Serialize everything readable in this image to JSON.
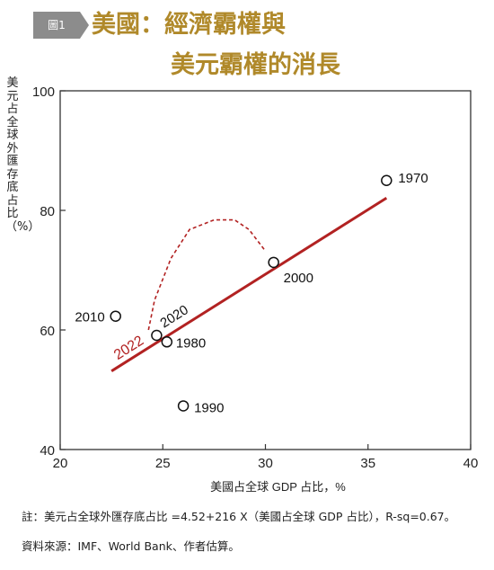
{
  "header": {
    "figure_badge": "圖1",
    "title_line_1": "美國：經濟霸權與",
    "title_line_2": "美元霸權的消長",
    "title_color": "#b0892a"
  },
  "chart_data": {
    "type": "scatter",
    "xlabel": "美國占全球 GDP 占比，%",
    "ylabel": "美元占全球外匯存底占比（%）",
    "xlim": [
      20,
      40
    ],
    "ylim": [
      40,
      100
    ],
    "x_ticks": [
      20,
      25,
      30,
      35,
      40
    ],
    "y_ticks": [
      40,
      60,
      80,
      100
    ],
    "points": [
      {
        "label": "1970",
        "x": 35.9,
        "y": 85.0
      },
      {
        "label": "2000",
        "x": 30.4,
        "y": 71.3
      },
      {
        "label": "2010",
        "x": 22.7,
        "y": 62.3
      },
      {
        "label": "2020",
        "x": 24.7,
        "y": 59.1
      },
      {
        "label": "1980",
        "x": 25.2,
        "y": 58.0
      },
      {
        "label": "1990",
        "x": 26.0,
        "y": 47.3
      }
    ],
    "regression": {
      "x_start": 22.5,
      "x_end": 35.9,
      "intercept": 4.52,
      "slope": 2.16,
      "color": "#b22222"
    },
    "projection": {
      "label": "2022",
      "color": "#b22222",
      "path": [
        [
          24.3,
          60.0
        ],
        [
          24.6,
          65.0
        ],
        [
          25.4,
          72.0
        ],
        [
          26.3,
          76.8
        ],
        [
          27.5,
          78.4
        ],
        [
          28.5,
          78.4
        ],
        [
          29.2,
          76.8
        ],
        [
          30.0,
          73.2
        ]
      ]
    },
    "grid": false
  },
  "footnotes": {
    "note": "註：美元占全球外匯存底占比 =4.52+216 X（美國占全球 GDP 占比），R-sq=0.67。",
    "source": "資料來源：IMF、World Bank、作者估算。"
  }
}
